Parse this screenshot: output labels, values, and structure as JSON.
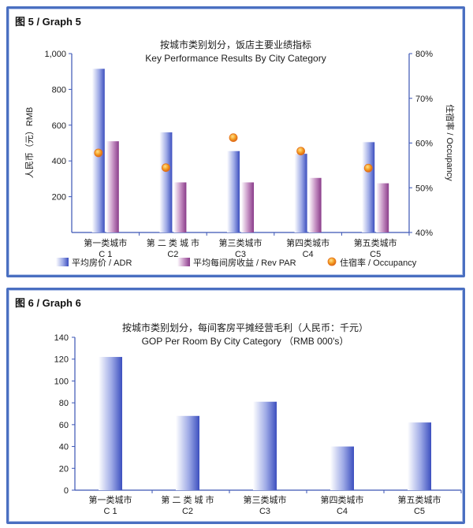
{
  "chart_data": [
    {
      "graph_label": "图 5 / Graph 5",
      "type": "bar",
      "title": "按城市类别划分，饭店主要业绩指标",
      "subtitle": "Key Performance Results By City Category",
      "ylabel": "人民币（元）RMB",
      "y2label": "住宿率 / Occupancy",
      "ylim": [
        0,
        1000
      ],
      "y2lim": [
        40,
        80
      ],
      "yticks": [
        "1,000",
        "800",
        "600",
        "400",
        "200"
      ],
      "y2ticks": [
        "80%",
        "70%",
        "60%",
        "50%",
        "40%"
      ],
      "categories": [
        {
          "cn": "第一类城市",
          "en": "C 1"
        },
        {
          "cn": "第 二 类 城 市",
          "en": "C2"
        },
        {
          "cn": "第三类城市",
          "en": "C3"
        },
        {
          "cn": "第四类城市",
          "en": "C4"
        },
        {
          "cn": "第五类城市",
          "en": "C5"
        }
      ],
      "series": [
        {
          "name": "平均房价 / ADR",
          "kind": "bar",
          "color": "#6c7fd6",
          "values": [
            915,
            560,
            455,
            440,
            505
          ]
        },
        {
          "name": "平均每间房收益 / Rev PAR",
          "kind": "bar",
          "color": "#a45fa2",
          "values": [
            510,
            280,
            280,
            305,
            275
          ]
        },
        {
          "name": "住宿率 / Occupancy",
          "kind": "point",
          "axis": "right",
          "color": "#f39a1e",
          "values": [
            57.8,
            54.5,
            61.2,
            58.2,
            54.4
          ]
        }
      ]
    },
    {
      "graph_label": "图 6 / Graph 6",
      "type": "bar",
      "title": "按城市类别划分，每间客房平摊经营毛利（人民币：千元）",
      "subtitle": "GOP Per Room By City Category （RMB 000's）",
      "ylim": [
        0,
        140
      ],
      "yticks": [
        "140",
        "120",
        "100",
        "80",
        "60",
        "40",
        "20",
        "0"
      ],
      "categories": [
        {
          "cn": "第一类城市",
          "en": "C 1"
        },
        {
          "cn": "第 二 类 城 市",
          "en": "C2"
        },
        {
          "cn": "第三类城市",
          "en": "C3"
        },
        {
          "cn": "第四类城市",
          "en": "C4"
        },
        {
          "cn": "第五类城市",
          "en": "C5"
        }
      ],
      "series": [
        {
          "kind": "bar",
          "color": "#6c7fd6",
          "values": [
            122,
            68,
            81,
            40,
            62
          ]
        }
      ]
    }
  ]
}
